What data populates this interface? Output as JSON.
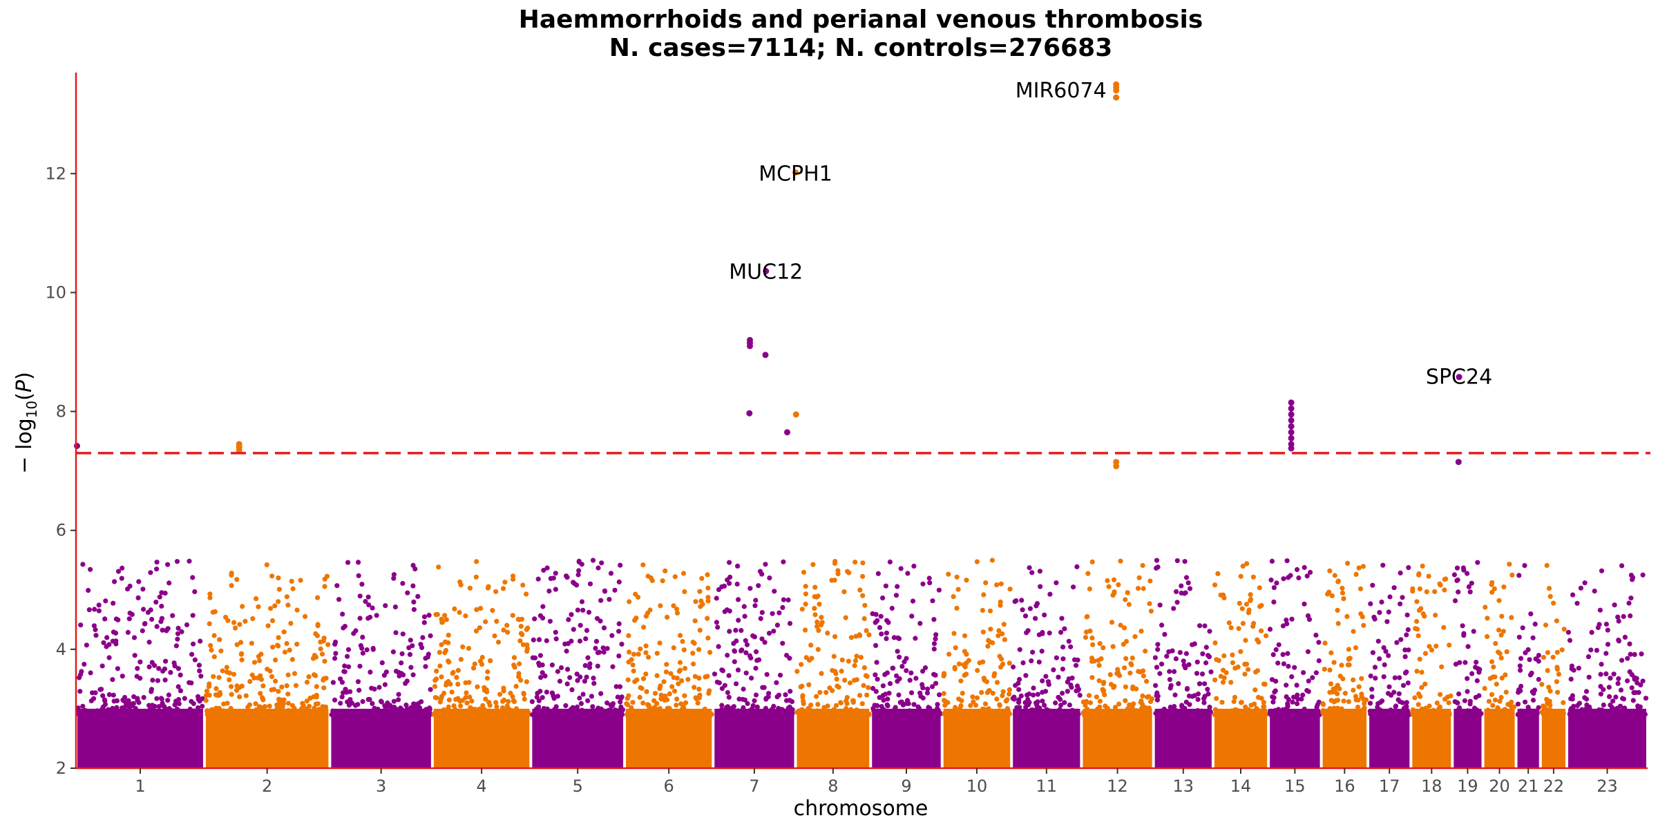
{
  "chart_data": {
    "type": "scatter",
    "title": "Haemmorrhoids and perianal venous thrombosis",
    "subtitle": "N. cases=7114; N. controls=276683",
    "xlabel": "chromosome",
    "ylabel": "-log10(P)",
    "ylim": [
      2,
      13.7
    ],
    "yticks": [
      2,
      4,
      6,
      8,
      10,
      12
    ],
    "significance_threshold": 7.3,
    "colors": {
      "odd": "#8b008b",
      "even": "#ee7600",
      "threshold": "#e41a1c",
      "axis": "#e41a1c"
    },
    "chromosomes": [
      {
        "label": "1",
        "start": 0,
        "end": 248
      },
      {
        "label": "2",
        "start": 248,
        "end": 490
      },
      {
        "label": "3",
        "start": 490,
        "end": 688
      },
      {
        "label": "4",
        "start": 688,
        "end": 878
      },
      {
        "label": "5",
        "start": 878,
        "end": 1059
      },
      {
        "label": "6",
        "start": 1059,
        "end": 1230
      },
      {
        "label": "7",
        "start": 1230,
        "end": 1389
      },
      {
        "label": "8",
        "start": 1389,
        "end": 1534
      },
      {
        "label": "9",
        "start": 1534,
        "end": 1672
      },
      {
        "label": "10",
        "start": 1672,
        "end": 1806
      },
      {
        "label": "11",
        "start": 1806,
        "end": 1941
      },
      {
        "label": "12",
        "start": 1941,
        "end": 2080
      },
      {
        "label": "13",
        "start": 2080,
        "end": 2195
      },
      {
        "label": "14",
        "start": 2195,
        "end": 2302
      },
      {
        "label": "15",
        "start": 2302,
        "end": 2404
      },
      {
        "label": "16",
        "start": 2404,
        "end": 2494
      },
      {
        "label": "17",
        "start": 2494,
        "end": 2577
      },
      {
        "label": "18",
        "start": 2577,
        "end": 2657
      },
      {
        "label": "19",
        "start": 2657,
        "end": 2716
      },
      {
        "label": "20",
        "start": 2716,
        "end": 2780
      },
      {
        "label": "21",
        "start": 2780,
        "end": 2827
      },
      {
        "label": "22",
        "start": 2827,
        "end": 2878
      },
      {
        "label": "23",
        "start": 2878,
        "end": 3034
      }
    ],
    "annotations": [
      {
        "label": "MIR6074",
        "x": 2008,
        "y": 13.4
      },
      {
        "label": "MCPH1",
        "x": 1389,
        "y": 12.0
      },
      {
        "label": "MUC12",
        "x": 1332,
        "y": 10.35
      },
      {
        "label": "SPC24",
        "x": 2670,
        "y": 8.58
      }
    ],
    "peaks": [
      {
        "x": 2008,
        "y": 13.5
      },
      {
        "x": 2008,
        "y": 13.45
      },
      {
        "x": 2008,
        "y": 13.4
      },
      {
        "x": 2008,
        "y": 13.28
      },
      {
        "x": 1389,
        "y": 12.02
      },
      {
        "x": 1332,
        "y": 10.36
      },
      {
        "x": 1301,
        "y": 9.2
      },
      {
        "x": 1301,
        "y": 9.15
      },
      {
        "x": 1301,
        "y": 9.1
      },
      {
        "x": 1331,
        "y": 8.95
      },
      {
        "x": 1300,
        "y": 7.97
      },
      {
        "x": 1390,
        "y": 7.95
      },
      {
        "x": 1373,
        "y": 7.65
      },
      {
        "x": 2670,
        "y": 8.58
      },
      {
        "x": 2346,
        "y": 8.15
      },
      {
        "x": 2346,
        "y": 8.05
      },
      {
        "x": 2346,
        "y": 7.95
      },
      {
        "x": 2346,
        "y": 7.85
      },
      {
        "x": 2346,
        "y": 7.75
      },
      {
        "x": 2346,
        "y": 7.65
      },
      {
        "x": 2346,
        "y": 7.55
      },
      {
        "x": 2346,
        "y": 7.45
      },
      {
        "x": 2346,
        "y": 7.38
      },
      {
        "x": 315,
        "y": 7.45
      },
      {
        "x": 315,
        "y": 7.4
      },
      {
        "x": 315,
        "y": 7.35
      },
      {
        "x": 2,
        "y": 7.42
      },
      {
        "x": 2008,
        "y": 7.15
      },
      {
        "x": 2008,
        "y": 7.08
      },
      {
        "x": 2669,
        "y": 7.15
      }
    ]
  }
}
